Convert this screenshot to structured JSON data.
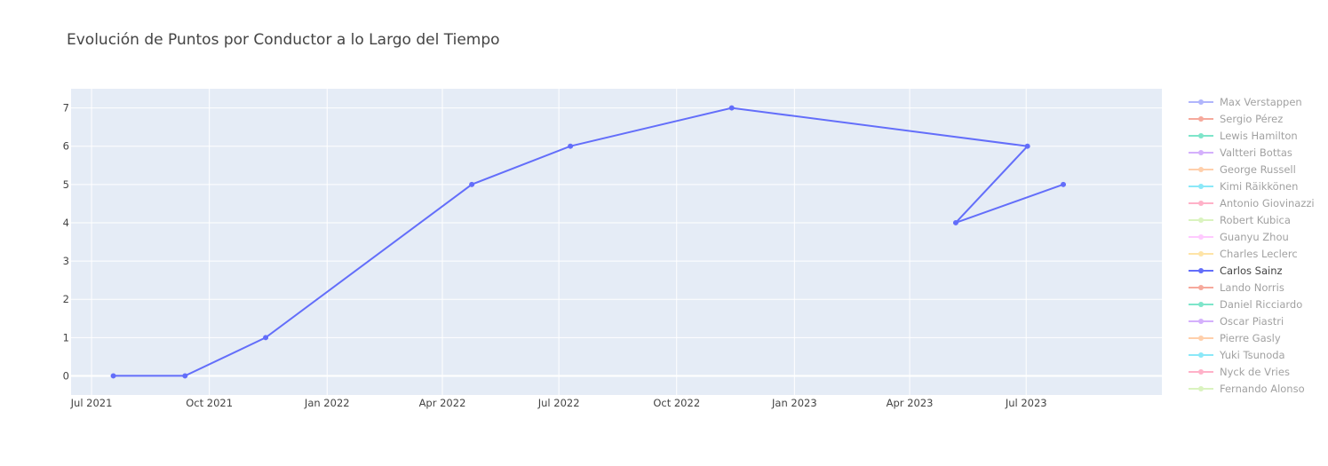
{
  "chart_data": {
    "type": "line",
    "title": "Evolución de Puntos por Conductor a lo Largo del Tiempo",
    "xlabel": "",
    "ylabel": "",
    "x_range": [
      "2021-06-15",
      "2023-10-15"
    ],
    "x_ticks": [
      {
        "date": "2021-07-01",
        "label": "Jul 2021"
      },
      {
        "date": "2021-10-01",
        "label": "Oct 2021"
      },
      {
        "date": "2022-01-01",
        "label": "Jan 2022"
      },
      {
        "date": "2022-04-01",
        "label": "Apr 2022"
      },
      {
        "date": "2022-07-01",
        "label": "Jul 2022"
      },
      {
        "date": "2022-10-01",
        "label": "Oct 2022"
      },
      {
        "date": "2023-01-01",
        "label": "Jan 2023"
      },
      {
        "date": "2023-04-01",
        "label": "Apr 2023"
      },
      {
        "date": "2023-07-01",
        "label": "Jul 2023"
      }
    ],
    "ylim": [
      -0.5,
      7.5
    ],
    "y_ticks": [
      0,
      1,
      2,
      3,
      4,
      5,
      6,
      7
    ],
    "grid": true,
    "legend_position": "right",
    "plot_bg": "#e5ecf6",
    "series": [
      {
        "name": "Max Verstappen",
        "color": "#636efa",
        "visible": "legendonly",
        "points": []
      },
      {
        "name": "Sergio Pérez",
        "color": "#ef553b",
        "visible": "legendonly",
        "points": []
      },
      {
        "name": "Lewis Hamilton",
        "color": "#00cc96",
        "visible": "legendonly",
        "points": []
      },
      {
        "name": "Valtteri Bottas",
        "color": "#ab63fa",
        "visible": "legendonly",
        "points": []
      },
      {
        "name": "George Russell",
        "color": "#ffa15a",
        "visible": "legendonly",
        "points": []
      },
      {
        "name": "Kimi Räikkönen",
        "color": "#19d3f3",
        "visible": "legendonly",
        "points": []
      },
      {
        "name": "Antonio Giovinazzi",
        "color": "#ff6692",
        "visible": "legendonly",
        "points": []
      },
      {
        "name": "Robert Kubica",
        "color": "#b6e880",
        "visible": "legendonly",
        "points": []
      },
      {
        "name": "Guanyu Zhou",
        "color": "#ff97ff",
        "visible": "legendonly",
        "points": []
      },
      {
        "name": "Charles Leclerc",
        "color": "#fecb52",
        "visible": "legendonly",
        "points": []
      },
      {
        "name": "Carlos Sainz",
        "color": "#636efa",
        "visible": true,
        "points": [
          {
            "x": "2021-07-18",
            "y": 0
          },
          {
            "x": "2021-09-12",
            "y": 0
          },
          {
            "x": "2021-11-14",
            "y": 1
          },
          {
            "x": "2022-04-24",
            "y": 5
          },
          {
            "x": "2022-07-10",
            "y": 6
          },
          {
            "x": "2022-11-13",
            "y": 7
          },
          {
            "x": "2023-07-02",
            "y": 6
          },
          {
            "x": "2023-05-07",
            "y": 4
          },
          {
            "x": "2023-07-30",
            "y": 5
          }
        ]
      },
      {
        "name": "Lando Norris",
        "color": "#ef553b",
        "visible": "legendonly",
        "points": []
      },
      {
        "name": "Daniel Ricciardo",
        "color": "#00cc96",
        "visible": "legendonly",
        "points": []
      },
      {
        "name": "Oscar Piastri",
        "color": "#ab63fa",
        "visible": "legendonly",
        "points": []
      },
      {
        "name": "Pierre Gasly",
        "color": "#ffa15a",
        "visible": "legendonly",
        "points": []
      },
      {
        "name": "Yuki Tsunoda",
        "color": "#19d3f3",
        "visible": "legendonly",
        "points": []
      },
      {
        "name": "Nyck de Vries",
        "color": "#ff6692",
        "visible": "legendonly",
        "points": []
      },
      {
        "name": "Fernando Alonso",
        "color": "#b6e880",
        "visible": "legendonly",
        "points": []
      }
    ]
  }
}
